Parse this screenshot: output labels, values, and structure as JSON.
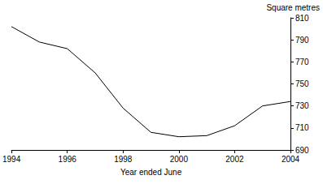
{
  "chart_data": {
    "type": "line",
    "x_label": "Year ended June",
    "y_label": "Square metres",
    "x": [
      1994,
      1995,
      1996,
      1997,
      1998,
      1999,
      2000,
      2001,
      2002,
      2003,
      2004
    ],
    "values": [
      802,
      788,
      782,
      760,
      728,
      706,
      702,
      703,
      712,
      730,
      734
    ],
    "color": "#000000",
    "xlim": [
      1994,
      2004
    ],
    "xticks": [
      1994,
      1996,
      1998,
      2000,
      2002,
      2004
    ],
    "ylim": [
      690,
      810
    ],
    "yticks": [
      690,
      710,
      730,
      750,
      770,
      790,
      810
    ],
    "grid": false
  }
}
